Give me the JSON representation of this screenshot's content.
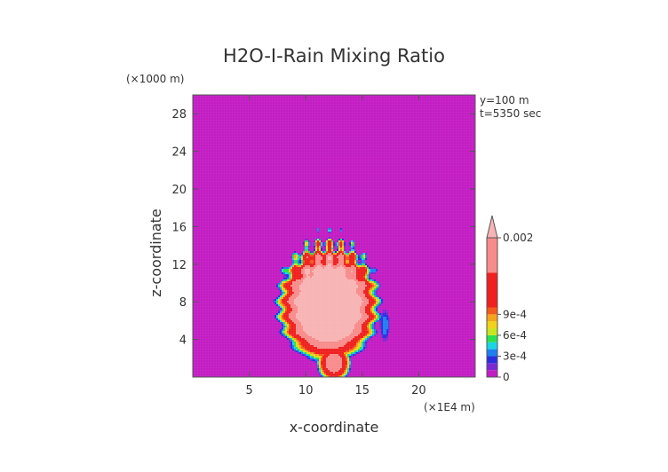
{
  "chart_data": {
    "type": "heatmap",
    "title": "H2O-I-Rain Mixing Ratio",
    "xlabel": "x-coordinate",
    "ylabel": "z-coordinate",
    "x_unit": "(×1E4 m)",
    "y_unit": "(×1000 m)",
    "annotations": [
      "y=100 m",
      "t=5350 sec"
    ],
    "xlim": [
      0,
      25
    ],
    "ylim": [
      0,
      30
    ],
    "x_ticks": [
      5,
      10,
      15,
      20
    ],
    "y_ticks": [
      4,
      8,
      12,
      16,
      20,
      24,
      28
    ],
    "background_color": "#c31cc3",
    "colorbar": {
      "labels": [
        "0",
        "3e-4",
        "6e-4",
        "9e-4",
        "0.002"
      ],
      "label_values": [
        0,
        0.0003,
        0.0006,
        0.0009,
        0.002
      ],
      "bands": [
        {
          "lo": 0,
          "hi": 0.0001,
          "color": "#c31cc3"
        },
        {
          "lo": 0.0001,
          "hi": 0.0002,
          "color": "#7a2ad2"
        },
        {
          "lo": 0.0002,
          "hi": 0.0003,
          "color": "#2a2ee0"
        },
        {
          "lo": 0.0003,
          "hi": 0.0004,
          "color": "#1f7ef0"
        },
        {
          "lo": 0.0004,
          "hi": 0.0005,
          "color": "#19d6e6"
        },
        {
          "lo": 0.0005,
          "hi": 0.0006,
          "color": "#2ae050"
        },
        {
          "lo": 0.0006,
          "hi": 0.0007,
          "color": "#c8e620"
        },
        {
          "lo": 0.0007,
          "hi": 0.0008,
          "color": "#f2d21a"
        },
        {
          "lo": 0.0008,
          "hi": 0.0009,
          "color": "#f4a41c"
        },
        {
          "lo": 0.0009,
          "hi": 0.001,
          "color": "#f45a1c"
        },
        {
          "lo": 0.001,
          "hi": 0.0015,
          "color": "#f02020"
        },
        {
          "lo": 0.0015,
          "hi": 0.002,
          "color": "#f88c8c"
        },
        {
          "lo": 0.002,
          "hi": null,
          "color": "#f8b4b4"
        }
      ]
    },
    "field_features": [
      {
        "name": "main-rain-core",
        "x_center": 12.0,
        "z_center": 7.5,
        "x_halfwidth": 3.8,
        "z_halfheight": 5.8,
        "value": 0.002
      },
      {
        "name": "rain-shaft",
        "x_center": 12.5,
        "z_center": 1.5,
        "x_halfwidth": 1.3,
        "z_halfheight": 1.8,
        "value": 0.0012
      },
      {
        "name": "right-streak",
        "x_center": 17.0,
        "z_center": 5.5,
        "x_halfwidth": 0.4,
        "z_halfheight": 1.6,
        "value": 0.00025
      }
    ]
  }
}
